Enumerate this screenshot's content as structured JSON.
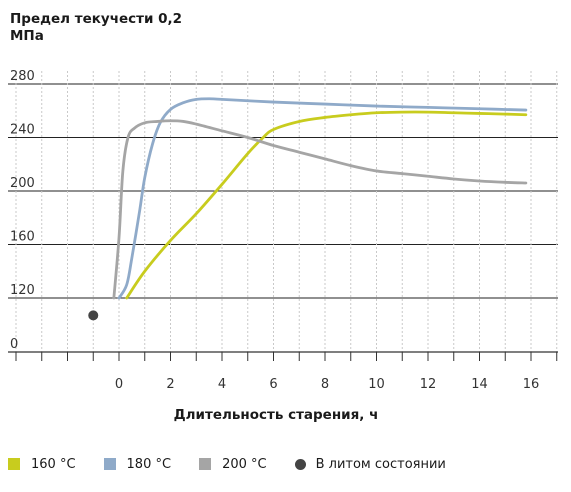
{
  "chart_data": {
    "type": "line",
    "title": "Предел текучести 0,2",
    "ylabel": "МПа",
    "xlabel": "Длительность старения, ч",
    "y_ticks": [
      0,
      120,
      160,
      200,
      240,
      280
    ],
    "x_ticks": [
      0,
      2,
      4,
      6,
      8,
      10,
      12,
      14,
      16
    ],
    "xlim": [
      -4,
      17
    ],
    "grid": true,
    "series": [
      {
        "name": "160 °C",
        "color": "#c8cc1e",
        "points": [
          [
            0.3,
            120
          ],
          [
            1,
            140
          ],
          [
            2,
            163
          ],
          [
            3,
            183
          ],
          [
            4,
            205
          ],
          [
            5,
            228
          ],
          [
            5.6,
            240
          ],
          [
            6,
            246
          ],
          [
            7,
            252
          ],
          [
            8,
            255
          ],
          [
            9,
            257
          ],
          [
            10,
            258.5
          ],
          [
            11,
            259
          ],
          [
            12,
            259
          ],
          [
            13,
            258.5
          ],
          [
            14,
            258
          ],
          [
            15,
            257.5
          ],
          [
            15.8,
            257
          ]
        ]
      },
      {
        "name": "180 °C",
        "color": "#8faac9",
        "points": [
          [
            0,
            120
          ],
          [
            0.3,
            130
          ],
          [
            0.5,
            150
          ],
          [
            0.8,
            185
          ],
          [
            1,
            210
          ],
          [
            1.3,
            235
          ],
          [
            1.6,
            251
          ],
          [
            2,
            261
          ],
          [
            2.5,
            266
          ],
          [
            3,
            268.5
          ],
          [
            3.5,
            269
          ],
          [
            4,
            268.5
          ],
          [
            6,
            266.5
          ],
          [
            8,
            265
          ],
          [
            10,
            263.5
          ],
          [
            12,
            262.5
          ],
          [
            14,
            261.5
          ],
          [
            15.8,
            260.5
          ]
        ]
      },
      {
        "name": "200 °C",
        "color": "#a5a5a5",
        "points": [
          [
            -0.2,
            120
          ],
          [
            0,
            165
          ],
          [
            0.15,
            215
          ],
          [
            0.35,
            240
          ],
          [
            0.6,
            247
          ],
          [
            1,
            251
          ],
          [
            1.5,
            252
          ],
          [
            2,
            252.5
          ],
          [
            2.5,
            252
          ],
          [
            3,
            250
          ],
          [
            4,
            245
          ],
          [
            5,
            240
          ],
          [
            6,
            234
          ],
          [
            7,
            229
          ],
          [
            8,
            224
          ],
          [
            9,
            219
          ],
          [
            10,
            215
          ],
          [
            11,
            213
          ],
          [
            12,
            211
          ],
          [
            13,
            209
          ],
          [
            14,
            207.5
          ],
          [
            15,
            206.5
          ],
          [
            15.8,
            206
          ]
        ]
      },
      {
        "name": "В литом состоянии",
        "color": "#444444",
        "type": "scatter",
        "points": [
          [
            -1,
            107
          ]
        ]
      }
    ]
  }
}
